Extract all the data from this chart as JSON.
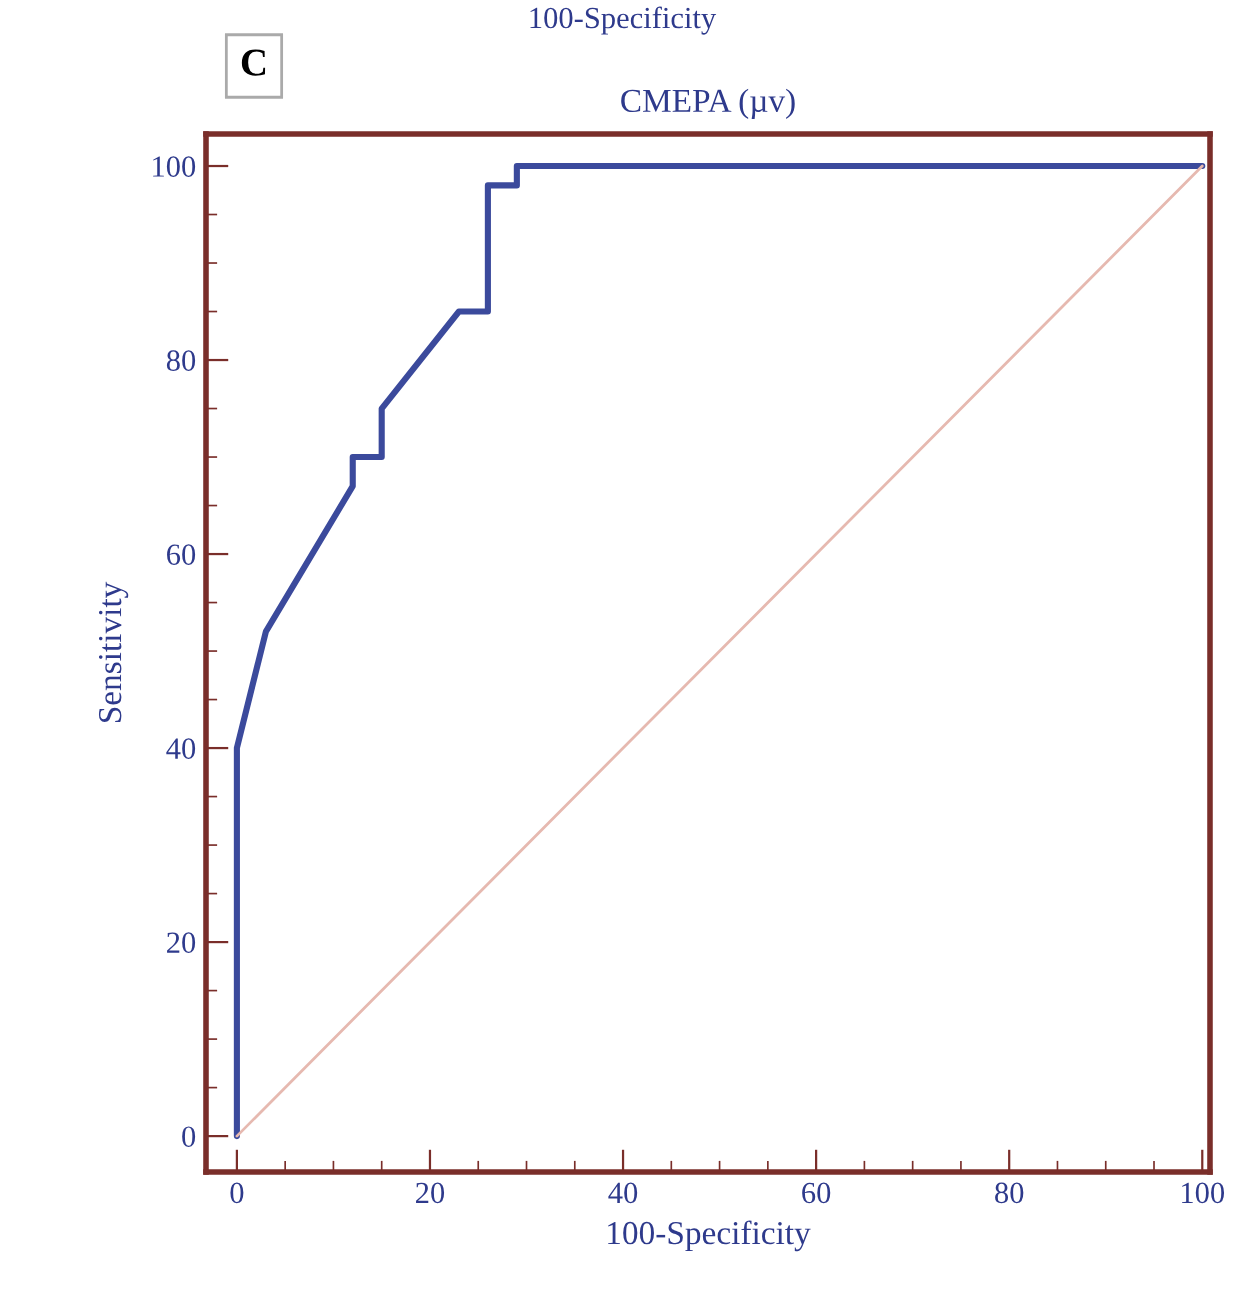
{
  "chart_data": {
    "type": "line",
    "title": "CMEPA (µv)",
    "xlabel": "100-Specificity",
    "ylabel": "Sensitivity",
    "annotations": [
      "100-Specificity",
      "C"
    ],
    "series": [
      {
        "color": "#3b4a9c",
        "x": [
          0,
          0,
          3,
          12,
          12,
          15,
          15,
          23,
          26,
          26,
          29,
          29,
          100
        ],
        "values": [
          0,
          40,
          52,
          67,
          70,
          70,
          75,
          85,
          85,
          98,
          98,
          100,
          100
        ]
      },
      {
        "color": "#e6b9b0",
        "x": [
          0,
          100
        ],
        "values": [
          0,
          100
        ]
      }
    ],
    "xlim": [
      -3.2,
      100.8
    ],
    "ylim": [
      -3.7,
      103.3
    ],
    "xticks": [
      0,
      20,
      40,
      60,
      80,
      100
    ],
    "yticks": [
      0,
      20,
      40,
      60,
      80,
      100
    ],
    "grid": false,
    "legend": false
  }
}
